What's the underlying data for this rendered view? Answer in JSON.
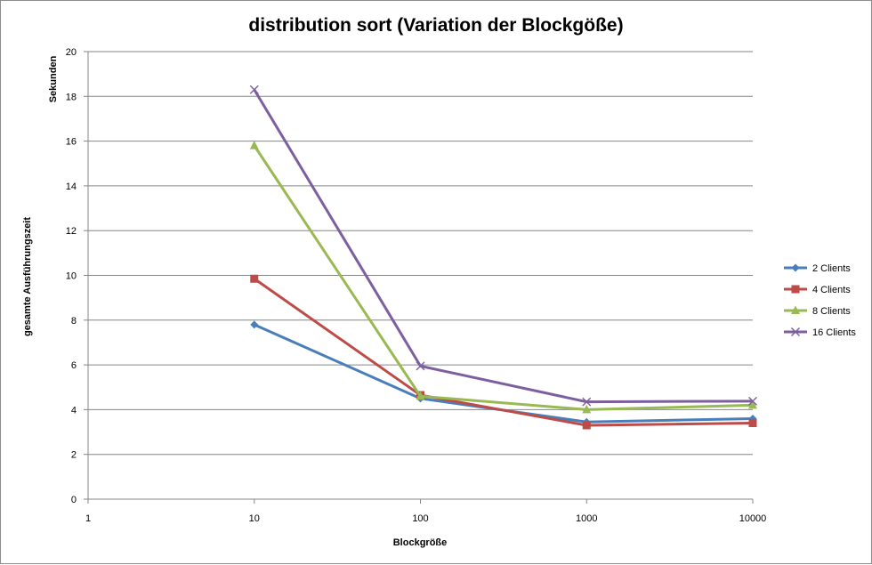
{
  "chart_data": {
    "type": "line",
    "title": "distribution sort (Variation der Blockgöße)",
    "xlabel": "Blockgröße",
    "ylabel_top": "Sekunden",
    "ylabel": "gesamte Ausführungszeit",
    "x_scale": "log",
    "xlim": [
      1,
      10000
    ],
    "ylim": [
      0,
      20
    ],
    "x_ticks": [
      "1",
      "10",
      "100",
      "1000",
      "10000"
    ],
    "y_ticks": [
      "0",
      "2",
      "4",
      "6",
      "8",
      "10",
      "12",
      "14",
      "16",
      "18",
      "20"
    ],
    "grid": "horizontal",
    "legend_position": "right",
    "x": [
      10,
      100,
      1000,
      10000
    ],
    "series": [
      {
        "name": "2 Clients",
        "values": [
          7.8,
          4.5,
          3.45,
          3.6
        ],
        "color": "#4a7ebb",
        "marker": "diamond"
      },
      {
        "name": "4 Clients",
        "values": [
          9.85,
          4.65,
          3.3,
          3.4
        ],
        "color": "#be4b48",
        "marker": "square"
      },
      {
        "name": "8 Clients",
        "values": [
          15.8,
          4.6,
          4.0,
          4.2
        ],
        "color": "#98b954",
        "marker": "triangle"
      },
      {
        "name": "16 Clients",
        "values": [
          18.3,
          5.95,
          4.35,
          4.38
        ],
        "color": "#7d5fa0",
        "marker": "x"
      }
    ]
  }
}
